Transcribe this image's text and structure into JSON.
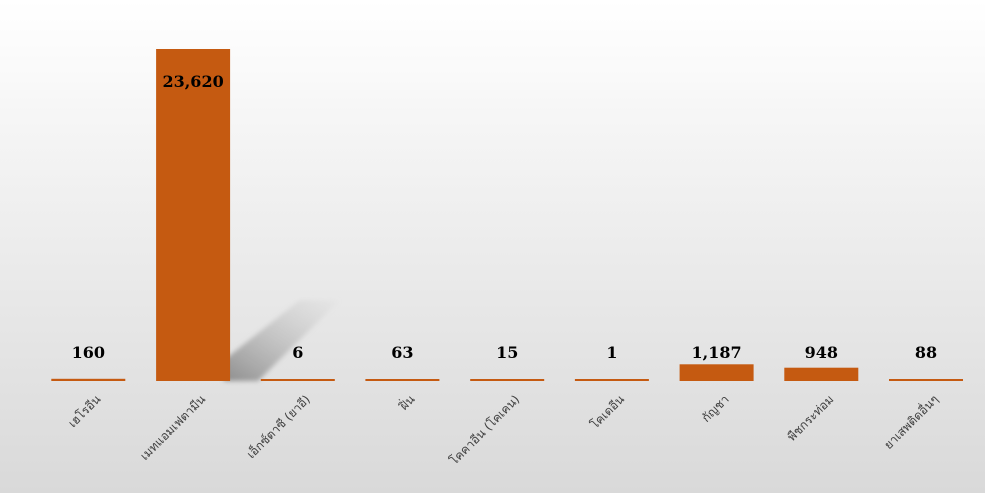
{
  "chart_data": {
    "type": "bar",
    "categories": [
      "เฮโรอีน",
      "เมทแอมเฟตามีน",
      "เอ็กซ์ตาซี (ยาอี)",
      "ฝิ่น",
      "โคคาอีน (โคเคน)",
      "โคเดอีน",
      "กัญชา",
      "พืชกระท่อม",
      "ยาเสพติดอื่นๆ"
    ],
    "values": [
      160,
      23620,
      6,
      63,
      15,
      1,
      1187,
      948,
      88
    ],
    "data_labels": [
      "160",
      "23,620",
      "6",
      "63",
      "15",
      "1",
      "1,187",
      "948",
      "88"
    ],
    "title": "",
    "xlabel": "",
    "ylabel": "",
    "ylim": [
      0,
      23620
    ],
    "grid": false,
    "legend": "none",
    "colors": {
      "bar": "#C55A11",
      "background_top": "#FFFFFF",
      "background_bottom": "#D9D9D9",
      "label": "#000000"
    }
  }
}
